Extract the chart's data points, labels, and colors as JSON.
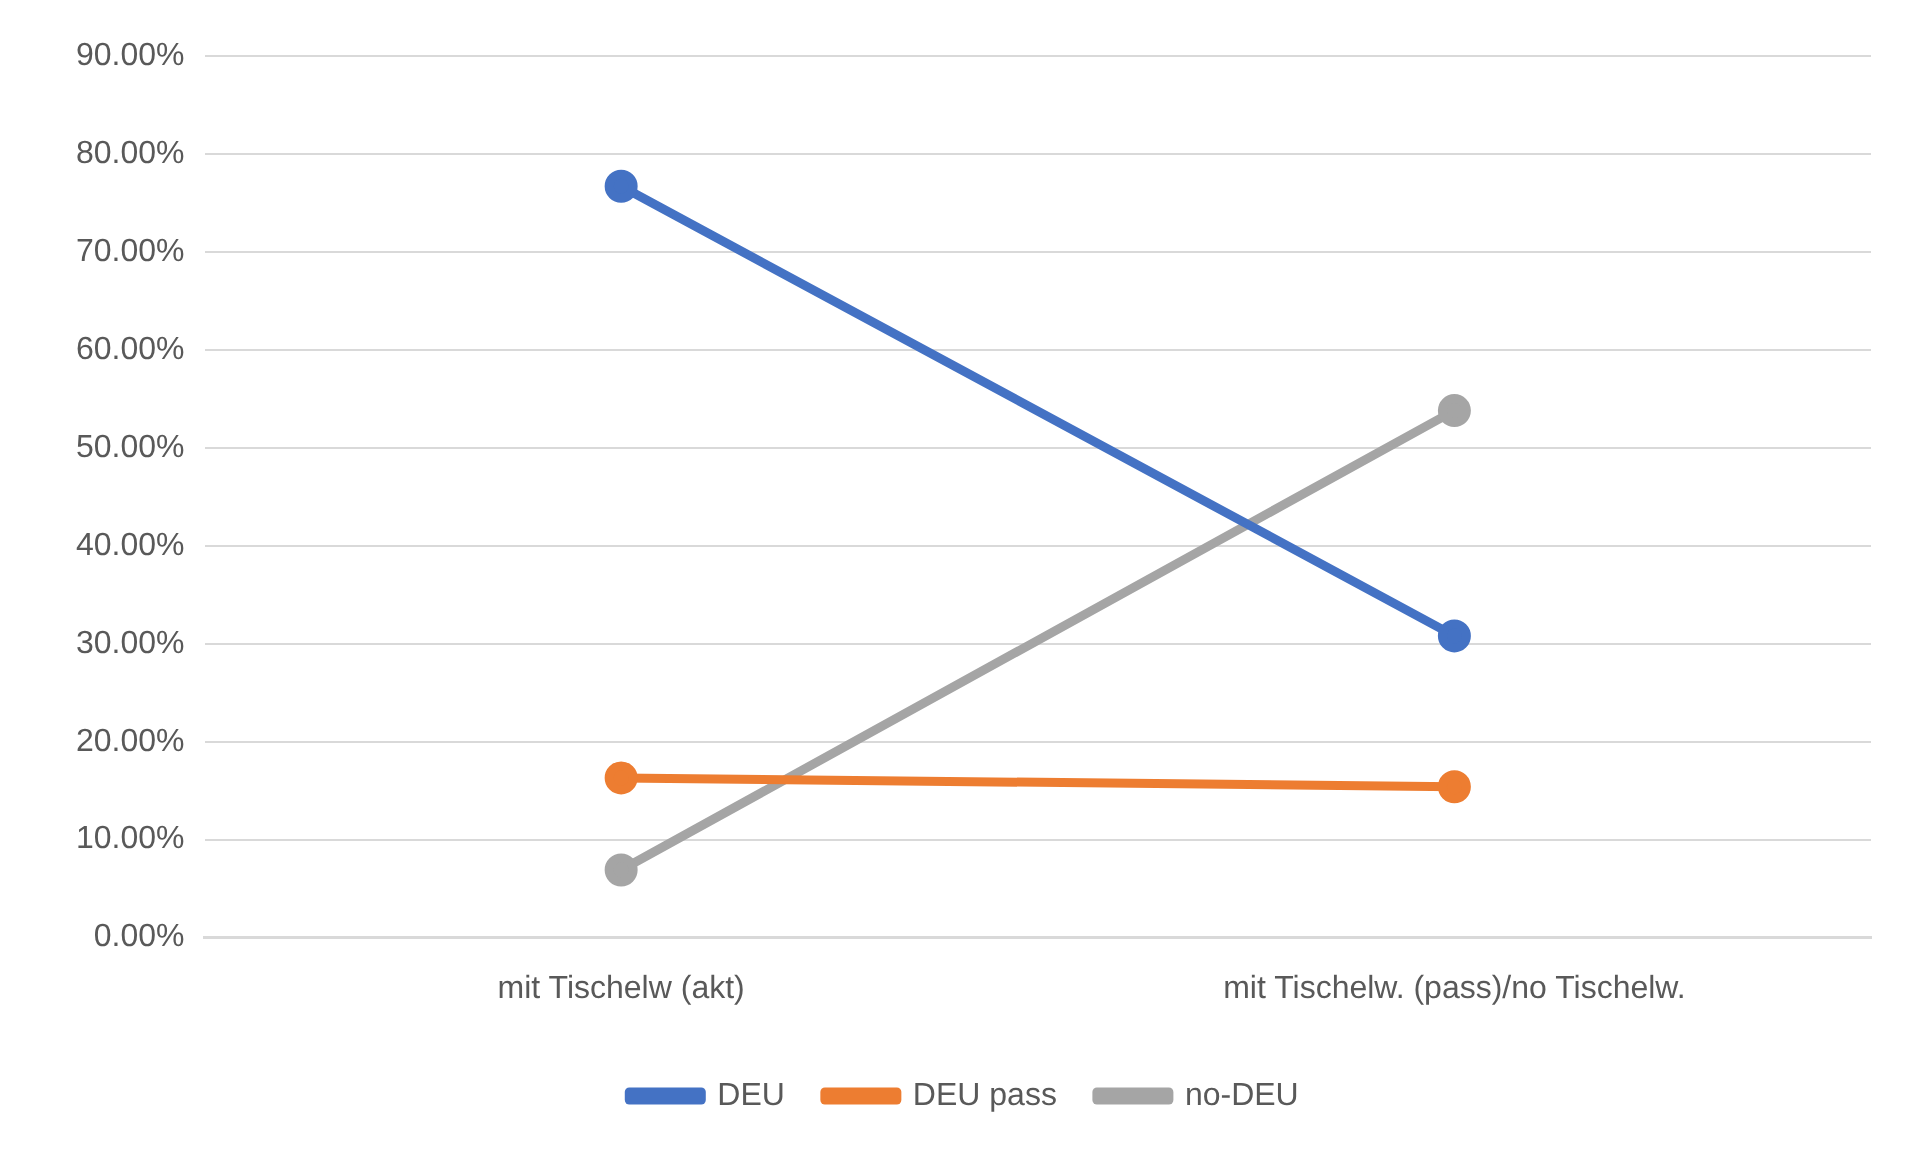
{
  "chart_data": {
    "type": "line",
    "categories": [
      "mit Tischelw (akt)",
      "mit Tischelw. (pass)/no Tischelw."
    ],
    "series": [
      {
        "name": "DEU",
        "color": "#4472c4",
        "values": [
          76.7,
          30.8
        ]
      },
      {
        "name": "DEU pass",
        "color": "#ed7d31",
        "values": [
          16.3,
          15.4
        ]
      },
      {
        "name": "no-DEU",
        "color": "#a5a5a5",
        "values": [
          6.9,
          53.8
        ]
      }
    ],
    "ylim": [
      0,
      90
    ],
    "yticks": [
      {
        "value": 0,
        "label": "0.00%"
      },
      {
        "value": 10,
        "label": "10.00%"
      },
      {
        "value": 20,
        "label": "20.00%"
      },
      {
        "value": 30,
        "label": "30.00%"
      },
      {
        "value": 40,
        "label": "40.00%"
      },
      {
        "value": 50,
        "label": "50.00%"
      },
      {
        "value": 60,
        "label": "60.00%"
      },
      {
        "value": 70,
        "label": "70.00%"
      },
      {
        "value": 80,
        "label": "80.00%"
      },
      {
        "value": 90,
        "label": "90.00%"
      }
    ],
    "grid": "y",
    "legend": "bottom",
    "marker": "circle",
    "line_style": "solid"
  }
}
